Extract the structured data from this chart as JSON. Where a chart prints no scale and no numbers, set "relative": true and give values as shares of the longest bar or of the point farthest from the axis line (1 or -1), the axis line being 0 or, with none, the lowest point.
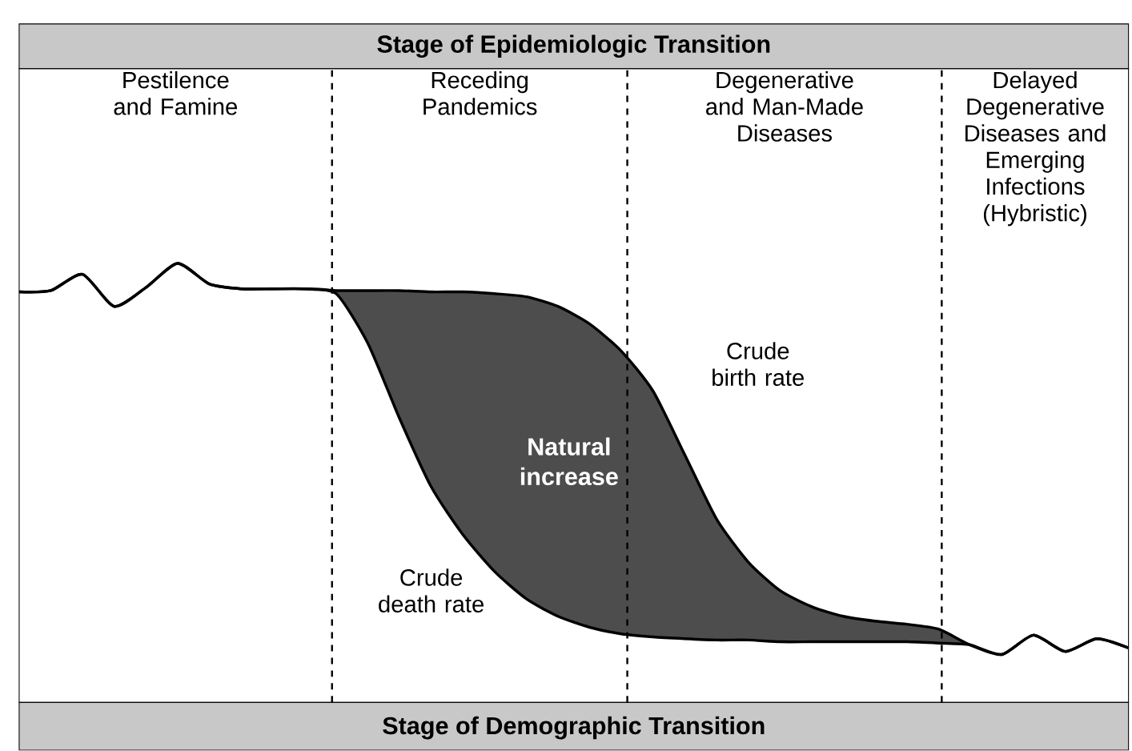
{
  "chart_data": {
    "type": "line",
    "title": "Stage of Epidemiologic Transition",
    "xlabel": "Stage of Demographic Transition",
    "relative": true,
    "categories": [
      null,
      null,
      null,
      null,
      null,
      null,
      null,
      null,
      null,
      null,
      null,
      null,
      null,
      null,
      null,
      null,
      null,
      null,
      null,
      null,
      null,
      null,
      null,
      null,
      null,
      null,
      null,
      null,
      null,
      null,
      null,
      null,
      null,
      null,
      null,
      null
    ],
    "series": [
      {
        "name": "Crude birth rate",
        "color": "#000000",
        "values": [
          0.935,
          0.938,
          0.975,
          0.902,
          0.945,
          1.0,
          0.953,
          0.942,
          0.942,
          0.942,
          0.938,
          0.938,
          0.938,
          0.935,
          0.935,
          0.931,
          0.924,
          0.902,
          0.862,
          0.8,
          0.709,
          0.564,
          0.418,
          0.32,
          0.255,
          0.218,
          0.196,
          0.185,
          0.178,
          0.167,
          0.131,
          0.109,
          0.153,
          0.116,
          0.145,
          0.124
        ]
      },
      {
        "name": "Crude death rate",
        "color": "#000000",
        "values": [
          0.935,
          0.938,
          0.975,
          0.902,
          0.945,
          1.0,
          0.953,
          0.942,
          0.942,
          0.942,
          0.931,
          0.818,
          0.647,
          0.491,
          0.382,
          0.298,
          0.236,
          0.196,
          0.171,
          0.156,
          0.149,
          0.145,
          0.142,
          0.142,
          0.138,
          0.138,
          0.138,
          0.138,
          0.138,
          0.135,
          0.131,
          0.109,
          0.153,
          0.116,
          0.145,
          0.124
        ]
      }
    ],
    "annotations": [
      "Pestilence and Famine",
      "Receding Pandemics",
      "Degenerative and Man-Made Diseases",
      "Delayed Degenerative Diseases and Emerging Infections (Hybristic)",
      "Natural increase"
    ],
    "line_style": "solid",
    "marker": "none"
  }
}
